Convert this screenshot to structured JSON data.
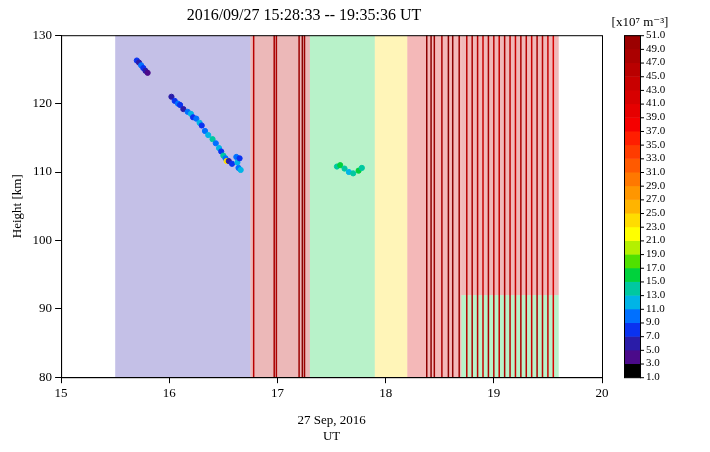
{
  "chart_data": {
    "type": "scatter",
    "title": "2016/09/27 15:28:33 -- 19:35:36 UT",
    "x_label": [
      "27 Sep, 2016",
      "UT"
    ],
    "y_label": "Height [km]",
    "xlim": [
      15,
      20
    ],
    "xticks": [
      15,
      16,
      17,
      18,
      19,
      20
    ],
    "ylim": [
      80,
      130
    ],
    "yticks": [
      80,
      90,
      100,
      110,
      120,
      130
    ],
    "grid": false,
    "colorbar": {
      "label": "[x10⁷ m⁻³]",
      "range": [
        1,
        51
      ],
      "ticks": [
        {
          "value": 1,
          "label": "1.0"
        },
        {
          "value": 3,
          "label": "3.0"
        },
        {
          "value": 5,
          "label": "5.0"
        },
        {
          "value": 7,
          "label": "7.0"
        },
        {
          "value": 9,
          "label": "9.0"
        },
        {
          "value": 11,
          "label": "11.0"
        },
        {
          "value": 13,
          "label": "13.0"
        },
        {
          "value": 15,
          "label": "15.0"
        },
        {
          "value": 17,
          "label": "17.0"
        },
        {
          "value": 19,
          "label": "19.0"
        },
        {
          "value": 21,
          "label": "21.0"
        },
        {
          "value": 23,
          "label": "23.0"
        },
        {
          "value": 25,
          "label": "25.0"
        },
        {
          "value": 27,
          "label": "27.0"
        },
        {
          "value": 29,
          "label": "29.0"
        },
        {
          "value": 31,
          "label": "31.0"
        },
        {
          "value": 33,
          "label": "33.0"
        },
        {
          "value": 35,
          "label": "35.0"
        },
        {
          "value": 37,
          "label": "37.0"
        },
        {
          "value": 39,
          "label": "39.0"
        },
        {
          "value": 41,
          "label": "41.0"
        },
        {
          "value": 43,
          "label": "43.0"
        },
        {
          "value": 45,
          "label": "45.0"
        },
        {
          "value": 47,
          "label": "47.0"
        },
        {
          "value": 49,
          "label": "49.0"
        },
        {
          "value": 51,
          "label": "51.0"
        }
      ]
    },
    "cells": [
      {
        "x0": 15.5,
        "x1": 16.75,
        "y0": 80,
        "y1": 130,
        "value": 5
      },
      {
        "x0": 16.75,
        "x1": 17.3,
        "y0": 80,
        "y1": 130,
        "value": 45
      },
      {
        "x0": 17.3,
        "x1": 17.9,
        "y0": 80,
        "y1": 130,
        "value": 14
      },
      {
        "x0": 17.9,
        "x1": 18.2,
        "y0": 80,
        "y1": 130,
        "value": 22
      },
      {
        "x0": 18.2,
        "x1": 18.7,
        "y0": 80,
        "y1": 130,
        "value": 40
      },
      {
        "x0": 18.7,
        "x1": 19.6,
        "y0": 92,
        "y1": 130,
        "value": 43
      },
      {
        "x0": 18.7,
        "x1": 19.6,
        "y0": 80,
        "y1": 92,
        "value": 15
      }
    ],
    "streaks": [
      {
        "x": 16.78,
        "value": 45
      },
      {
        "x": 16.97,
        "value": 47
      },
      {
        "x": 16.99,
        "value": 47
      },
      {
        "x": 17.2,
        "value": 49
      },
      {
        "x": 17.23,
        "value": 51
      },
      {
        "x": 17.25,
        "value": 49
      },
      {
        "x": 18.38,
        "value": 51
      },
      {
        "x": 18.42,
        "value": 51
      },
      {
        "x": 18.45,
        "value": 49
      },
      {
        "x": 18.52,
        "value": 47
      },
      {
        "x": 18.58,
        "value": 51
      },
      {
        "x": 18.62,
        "value": 51
      },
      {
        "x": 18.68,
        "value": 49
      },
      {
        "x": 18.75,
        "value": 45
      },
      {
        "x": 18.8,
        "value": 47
      },
      {
        "x": 18.85,
        "value": 45
      },
      {
        "x": 18.9,
        "value": 43
      },
      {
        "x": 18.95,
        "value": 47
      },
      {
        "x": 19.0,
        "value": 45
      },
      {
        "x": 19.05,
        "value": 43
      },
      {
        "x": 19.1,
        "value": 47
      },
      {
        "x": 19.15,
        "value": 45
      },
      {
        "x": 19.2,
        "value": 43
      },
      {
        "x": 19.25,
        "value": 47
      },
      {
        "x": 19.3,
        "value": 45
      },
      {
        "x": 19.35,
        "value": 43
      },
      {
        "x": 19.4,
        "value": 47
      },
      {
        "x": 19.45,
        "value": 45
      },
      {
        "x": 19.5,
        "value": 43
      },
      {
        "x": 19.55,
        "value": 41
      }
    ],
    "points": [
      {
        "x": 15.7,
        "y": 126.3,
        "value": 7
      },
      {
        "x": 15.72,
        "y": 126.0,
        "value": 5
      },
      {
        "x": 15.74,
        "y": 125.6,
        "value": 9
      },
      {
        "x": 15.76,
        "y": 125.2,
        "value": 7
      },
      {
        "x": 15.78,
        "y": 124.8,
        "value": 5
      },
      {
        "x": 15.8,
        "y": 124.5,
        "value": 3
      },
      {
        "x": 16.02,
        "y": 121.0,
        "value": 5
      },
      {
        "x": 16.05,
        "y": 120.4,
        "value": 7
      },
      {
        "x": 16.08,
        "y": 120.0,
        "value": 9
      },
      {
        "x": 16.1,
        "y": 119.8,
        "value": 7
      },
      {
        "x": 16.13,
        "y": 119.2,
        "value": 5
      },
      {
        "x": 16.17,
        "y": 118.8,
        "value": 9
      },
      {
        "x": 16.2,
        "y": 118.5,
        "value": 11
      },
      {
        "x": 16.22,
        "y": 118.0,
        "value": 7
      },
      {
        "x": 16.25,
        "y": 117.8,
        "value": 9
      },
      {
        "x": 16.28,
        "y": 117.2,
        "value": 11
      },
      {
        "x": 16.3,
        "y": 116.8,
        "value": 7
      },
      {
        "x": 16.33,
        "y": 116.0,
        "value": 9
      },
      {
        "x": 16.36,
        "y": 115.4,
        "value": 11
      },
      {
        "x": 16.4,
        "y": 114.8,
        "value": 13
      },
      {
        "x": 16.43,
        "y": 114.2,
        "value": 9
      },
      {
        "x": 16.46,
        "y": 113.5,
        "value": 11
      },
      {
        "x": 16.48,
        "y": 113.0,
        "value": 7
      },
      {
        "x": 16.5,
        "y": 112.4,
        "value": 13
      },
      {
        "x": 16.52,
        "y": 112.0,
        "value": 9
      },
      {
        "x": 16.53,
        "y": 111.6,
        "value": 23
      },
      {
        "x": 16.55,
        "y": 111.6,
        "value": 5
      },
      {
        "x": 16.58,
        "y": 111.2,
        "value": 7
      },
      {
        "x": 16.62,
        "y": 112.2,
        "value": 9
      },
      {
        "x": 16.63,
        "y": 111.4,
        "value": 11
      },
      {
        "x": 16.64,
        "y": 110.6,
        "value": 9
      },
      {
        "x": 16.65,
        "y": 112.0,
        "value": 7
      },
      {
        "x": 16.66,
        "y": 110.3,
        "value": 11
      },
      {
        "x": 17.55,
        "y": 110.8,
        "value": 13
      },
      {
        "x": 17.58,
        "y": 111.0,
        "value": 15
      },
      {
        "x": 17.62,
        "y": 110.5,
        "value": 13
      },
      {
        "x": 17.66,
        "y": 110.0,
        "value": 11
      },
      {
        "x": 17.7,
        "y": 109.8,
        "value": 13
      },
      {
        "x": 17.75,
        "y": 110.2,
        "value": 15
      },
      {
        "x": 17.78,
        "y": 110.6,
        "value": 13
      }
    ]
  }
}
